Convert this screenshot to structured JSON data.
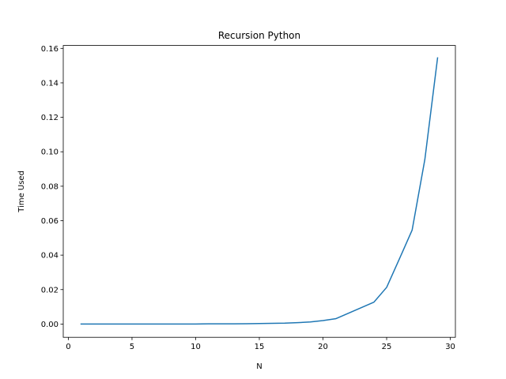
{
  "chart_data": {
    "type": "line",
    "title": "Recursion Python",
    "xlabel": "N",
    "ylabel": "Time Used",
    "xlim": [
      -0.4,
      30.4
    ],
    "ylim": [
      -0.0077,
      0.1617
    ],
    "xticks": [
      0,
      5,
      10,
      15,
      20,
      25,
      30
    ],
    "yticks": [
      0.0,
      0.02,
      0.04,
      0.06,
      0.08,
      0.1,
      0.12,
      0.14,
      0.16
    ],
    "xtick_labels": [
      "0",
      "5",
      "10",
      "15",
      "20",
      "25",
      "30"
    ],
    "ytick_labels": [
      "0.00",
      "0.02",
      "0.04",
      "0.06",
      "0.08",
      "0.10",
      "0.12",
      "0.14",
      "0.16"
    ],
    "grid": false,
    "color": "#1f77b4",
    "series": [
      {
        "x": [
          1,
          2,
          3,
          4,
          5,
          6,
          7,
          8,
          9,
          10,
          11,
          12,
          13,
          14,
          15,
          16,
          17,
          18,
          19,
          20,
          21,
          22,
          23,
          24,
          25,
          26,
          27,
          28,
          29
        ],
        "values": [
          0.0,
          0.0,
          0.0,
          0.0,
          0.0,
          0.0,
          0.0,
          0.0,
          0.0,
          0.0,
          0.0001,
          0.0001,
          0.0001,
          0.0002,
          0.0003,
          0.0004,
          0.0005,
          0.0008,
          0.0012,
          0.002,
          0.0031,
          0.0063,
          0.0095,
          0.0127,
          0.0213,
          0.0378,
          0.0545,
          0.0955,
          0.1545
        ]
      }
    ]
  }
}
